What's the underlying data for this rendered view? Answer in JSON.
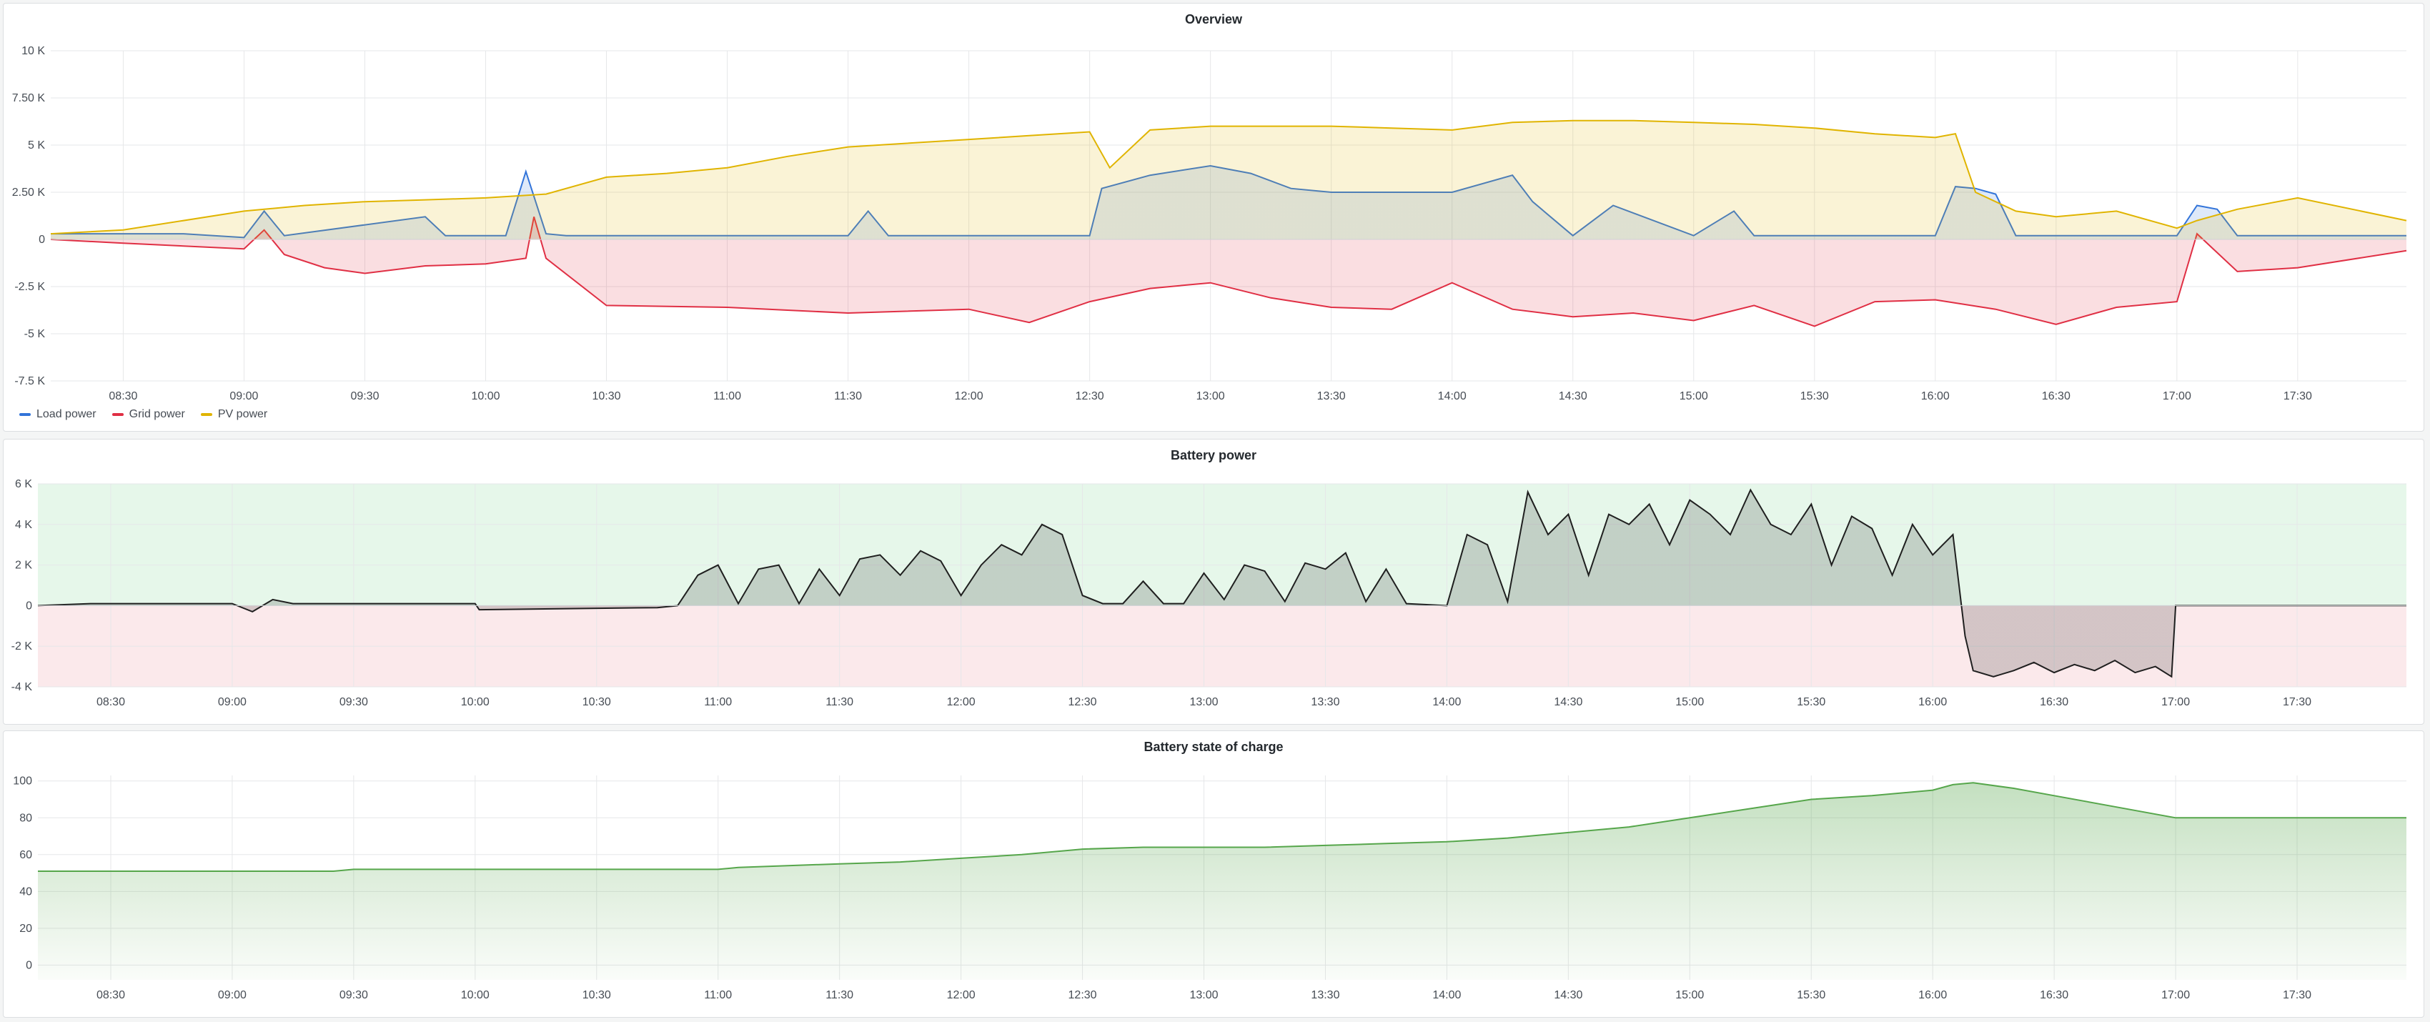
{
  "colors": {
    "load": "#3274d9",
    "grid": "#e02f44",
    "pv": "#e0b400",
    "battery": "#1f1f1f",
    "soc": "#56a64b",
    "pos_band": "#e6f7ea",
    "neg_band": "#fbe9eb"
  },
  "panels": {
    "overview": {
      "title": "Overview",
      "legend": [
        "Load power",
        "Grid power",
        "PV power"
      ]
    },
    "battery_power": {
      "title": "Battery power"
    },
    "soc": {
      "title": "Battery state of charge"
    }
  },
  "chart_data": [
    {
      "type": "area",
      "title": "Overview",
      "x_ticks": [
        "08:30",
        "09:00",
        "09:30",
        "10:00",
        "10:30",
        "11:00",
        "11:30",
        "12:00",
        "12:30",
        "13:00",
        "13:30",
        "14:00",
        "14:30",
        "15:00",
        "15:30",
        "16:00",
        "16:30",
        "17:00",
        "17:30"
      ],
      "y_ticks": [
        "10 K",
        "7.50 K",
        "5 K",
        "2.50 K",
        "0",
        "-2.5 K",
        "-5 K",
        "-7.5 K"
      ],
      "ylim": [
        -7500,
        10000
      ],
      "x_range": [
        "08:12",
        "17:57"
      ],
      "legend_position": "bottom-left",
      "series": [
        {
          "name": "Load power",
          "color": "#3274d9",
          "x": [
            "08:12",
            "08:45",
            "09:00",
            "09:05",
            "09:10",
            "09:45",
            "09:50",
            "10:05",
            "10:10",
            "10:15",
            "10:20",
            "10:45",
            "11:00",
            "11:30",
            "11:35",
            "11:40",
            "12:00",
            "12:30",
            "12:33",
            "12:45",
            "13:00",
            "13:10",
            "13:20",
            "13:30",
            "14:00",
            "14:15",
            "14:20",
            "14:30",
            "14:40",
            "15:00",
            "15:10",
            "15:15",
            "15:30",
            "15:45",
            "16:00",
            "16:05",
            "16:10",
            "16:15",
            "16:20",
            "16:45",
            "17:00",
            "17:05",
            "17:10",
            "17:15",
            "17:30",
            "17:57"
          ],
          "y": [
            300,
            300,
            100,
            1500,
            200,
            1200,
            200,
            200,
            3600,
            300,
            200,
            200,
            200,
            200,
            1500,
            200,
            200,
            200,
            2700,
            3400,
            3900,
            3500,
            2700,
            2500,
            2500,
            3400,
            2000,
            200,
            1800,
            200,
            1500,
            200,
            200,
            200,
            200,
            2800,
            2700,
            2400,
            200,
            200,
            200,
            1800,
            1600,
            200,
            200,
            200
          ]
        },
        {
          "name": "Grid power",
          "color": "#e02f44",
          "x": [
            "08:12",
            "08:30",
            "09:00",
            "09:05",
            "09:10",
            "09:20",
            "09:30",
            "09:45",
            "10:00",
            "10:10",
            "10:12",
            "10:15",
            "10:30",
            "11:00",
            "11:30",
            "12:00",
            "12:15",
            "12:30",
            "12:45",
            "13:00",
            "13:15",
            "13:30",
            "13:45",
            "14:00",
            "14:15",
            "14:30",
            "14:45",
            "15:00",
            "15:15",
            "15:30",
            "15:45",
            "16:00",
            "16:15",
            "16:30",
            "16:45",
            "17:00",
            "17:05",
            "17:15",
            "17:30",
            "17:57"
          ],
          "y": [
            0,
            -200,
            -500,
            500,
            -800,
            -1500,
            -1800,
            -1400,
            -1300,
            -1000,
            1200,
            -1000,
            -3500,
            -3600,
            -3900,
            -3700,
            -4400,
            -3300,
            -2600,
            -2300,
            -3100,
            -3600,
            -3700,
            -2300,
            -3700,
            -4100,
            -3900,
            -4300,
            -3500,
            -4600,
            -3300,
            -3200,
            -3700,
            -4500,
            -3600,
            -3300,
            300,
            -1700,
            -1500,
            -600
          ]
        },
        {
          "name": "PV power",
          "color": "#e0b400",
          "x": [
            "08:12",
            "08:30",
            "09:00",
            "09:15",
            "09:30",
            "09:45",
            "10:00",
            "10:15",
            "10:30",
            "10:45",
            "11:00",
            "11:15",
            "11:30",
            "12:00",
            "12:15",
            "12:30",
            "12:35",
            "12:45",
            "13:00",
            "13:15",
            "13:30",
            "13:45",
            "14:00",
            "14:15",
            "14:30",
            "14:45",
            "15:00",
            "15:15",
            "15:30",
            "15:45",
            "16:00",
            "16:05",
            "16:10",
            "16:20",
            "16:30",
            "16:45",
            "17:00",
            "17:05",
            "17:15",
            "17:30",
            "17:57"
          ],
          "y": [
            300,
            500,
            1500,
            1800,
            2000,
            2100,
            2200,
            2400,
            3300,
            3500,
            3800,
            4400,
            4900,
            5300,
            5500,
            5700,
            3800,
            5800,
            6000,
            6000,
            6000,
            5900,
            5800,
            6200,
            6300,
            6300,
            6200,
            6100,
            5900,
            5600,
            5400,
            5600,
            2500,
            1500,
            1200,
            1500,
            600,
            1000,
            1600,
            2200,
            1000
          ]
        }
      ]
    },
    {
      "type": "area",
      "title": "Battery power",
      "x_ticks": [
        "08:30",
        "09:00",
        "09:30",
        "10:00",
        "10:30",
        "11:00",
        "11:30",
        "12:00",
        "12:30",
        "13:00",
        "13:30",
        "14:00",
        "14:30",
        "15:00",
        "15:30",
        "16:00",
        "16:30",
        "17:00",
        "17:30"
      ],
      "y_ticks": [
        "6 K",
        "4 K",
        "2 K",
        "0",
        "-2 K",
        "-4 K"
      ],
      "ylim": [
        -4000,
        6000
      ],
      "x_range": [
        "08:12",
        "17:57"
      ],
      "series": [
        {
          "name": "",
          "color": "#1f1f1f",
          "x": [
            "08:12",
            "08:25",
            "09:00",
            "09:05",
            "09:10",
            "09:15",
            "10:00",
            "10:01",
            "10:45",
            "10:50",
            "10:55",
            "11:00",
            "11:05",
            "11:10",
            "11:15",
            "11:20",
            "11:25",
            "11:30",
            "11:35",
            "11:40",
            "11:45",
            "11:50",
            "11:55",
            "12:00",
            "12:05",
            "12:10",
            "12:15",
            "12:20",
            "12:25",
            "12:30",
            "12:35",
            "12:40",
            "12:45",
            "12:50",
            "12:55",
            "13:00",
            "13:05",
            "13:10",
            "13:15",
            "13:20",
            "13:25",
            "13:30",
            "13:35",
            "13:40",
            "13:45",
            "13:50",
            "14:00",
            "14:05",
            "14:10",
            "14:15",
            "14:20",
            "14:25",
            "14:30",
            "14:35",
            "14:40",
            "14:45",
            "14:50",
            "14:55",
            "15:00",
            "15:05",
            "15:10",
            "15:15",
            "15:20",
            "15:25",
            "15:30",
            "15:35",
            "15:40",
            "15:45",
            "15:50",
            "15:55",
            "16:00",
            "16:05",
            "16:08",
            "16:10",
            "16:15",
            "16:20",
            "16:25",
            "16:30",
            "16:35",
            "16:40",
            "16:45",
            "16:50",
            "16:55",
            "16:59",
            "17:00",
            "17:30",
            "17:57"
          ],
          "y": [
            0,
            100,
            100,
            -300,
            300,
            100,
            100,
            -200,
            -100,
            0,
            1500,
            2000,
            100,
            1800,
            2000,
            100,
            1800,
            500,
            2300,
            2500,
            1500,
            2700,
            2200,
            500,
            2000,
            3000,
            2500,
            4000,
            3500,
            500,
            100,
            100,
            1200,
            100,
            100,
            1600,
            300,
            2000,
            1700,
            200,
            2100,
            1800,
            2600,
            200,
            1800,
            100,
            0,
            3500,
            3000,
            200,
            5600,
            3500,
            4500,
            1500,
            4500,
            4000,
            5000,
            3000,
            5200,
            4500,
            3500,
            5700,
            4000,
            3500,
            5000,
            2000,
            4400,
            3800,
            1500,
            4000,
            2500,
            3500,
            -1500,
            -3200,
            -3500,
            -3200,
            -2800,
            -3300,
            -2900,
            -3200,
            -2700,
            -3300,
            -3000,
            -3500,
            0,
            0,
            0
          ]
        }
      ]
    },
    {
      "type": "area",
      "title": "Battery state of charge",
      "x_ticks": [
        "08:30",
        "09:00",
        "09:30",
        "10:00",
        "10:30",
        "11:00",
        "11:30",
        "12:00",
        "12:30",
        "13:00",
        "13:30",
        "14:00",
        "14:30",
        "15:00",
        "15:30",
        "16:00",
        "16:30",
        "17:00",
        "17:30"
      ],
      "y_ticks": [
        "100",
        "80",
        "60",
        "40",
        "20",
        "0"
      ],
      "ylim": [
        -8,
        103
      ],
      "x_range": [
        "08:12",
        "17:57"
      ],
      "series": [
        {
          "name": "",
          "color": "#56a64b",
          "x": [
            "08:12",
            "09:00",
            "09:25",
            "09:30",
            "10:00",
            "10:30",
            "11:00",
            "11:05",
            "11:30",
            "11:45",
            "12:00",
            "12:15",
            "12:30",
            "12:45",
            "13:00",
            "13:15",
            "13:30",
            "13:45",
            "14:00",
            "14:15",
            "14:30",
            "14:45",
            "15:00",
            "15:15",
            "15:30",
            "15:45",
            "16:00",
            "16:05",
            "16:10",
            "16:20",
            "16:30",
            "16:45",
            "17:00",
            "17:30",
            "17:57"
          ],
          "y": [
            51,
            51,
            51,
            52,
            52,
            52,
            52,
            53,
            55,
            56,
            58,
            60,
            63,
            64,
            64,
            64,
            65,
            66,
            67,
            69,
            72,
            75,
            80,
            85,
            90,
            92,
            95,
            98,
            99,
            96,
            92,
            86,
            80,
            80,
            80
          ]
        }
      ]
    }
  ]
}
